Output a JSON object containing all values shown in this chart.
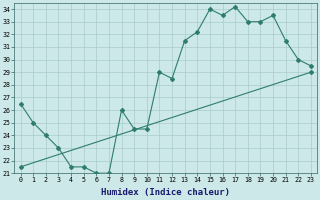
{
  "xlabel": "Humidex (Indice chaleur)",
  "bg_color": "#cce8e8",
  "grid_color": "#aacccc",
  "line_color": "#2e7d6e",
  "xlim": [
    -0.5,
    23.5
  ],
  "ylim": [
    21,
    34.5
  ],
  "yticks": [
    21,
    22,
    23,
    24,
    25,
    26,
    27,
    28,
    29,
    30,
    31,
    32,
    33,
    34
  ],
  "xticks": [
    0,
    1,
    2,
    3,
    4,
    5,
    6,
    7,
    8,
    9,
    10,
    11,
    12,
    13,
    14,
    15,
    16,
    17,
    18,
    19,
    20,
    21,
    22,
    23
  ],
  "line1_x": [
    0,
    1,
    2,
    3,
    4,
    5,
    6,
    7,
    8,
    9,
    10,
    11,
    12,
    13,
    14,
    15,
    16,
    17,
    18,
    19,
    20,
    21,
    22,
    23
  ],
  "line1_y": [
    26.5,
    25.0,
    24.0,
    23.0,
    21.5,
    21.5,
    21.0,
    21.0,
    26.0,
    24.5,
    24.5,
    29.0,
    28.5,
    31.5,
    32.2,
    34.0,
    33.5,
    34.2,
    33.0,
    33.0,
    33.5,
    31.5,
    30.0,
    29.5
  ],
  "line2_x": [
    0,
    23
  ],
  "line2_y": [
    21.5,
    29.0
  ],
  "xlabel_fontsize": 6.5,
  "tick_fontsize": 4.8
}
